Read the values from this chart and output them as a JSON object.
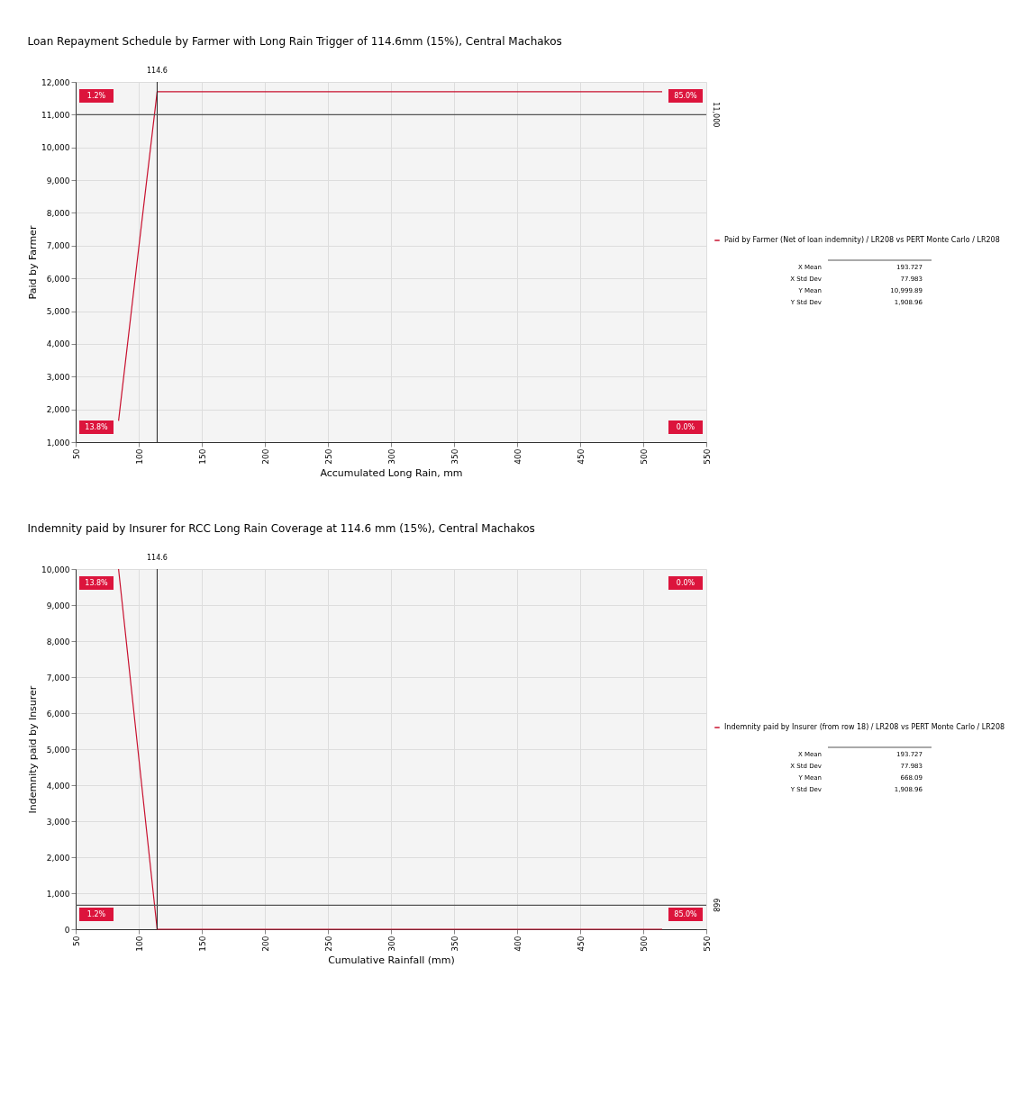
{
  "chart_data": [
    {
      "type": "line",
      "title": "Loan Repayment Schedule by Farmer with Long Rain Trigger of 114.6mm (15%), Central Machakos",
      "xlabel": "Accumulated Long Rain, mm",
      "ylabel": "Paid by Farmer",
      "series": [
        {
          "name": "Paid by Farmer (Net of loan indemnity) / LR208 vs PERT Monte Carlo / LR208",
          "color": "#c8102e",
          "x": [
            84,
            99.3,
            114.6,
            515
          ],
          "values": [
            1650,
            6700,
            11700,
            11700
          ]
        }
      ],
      "xlim": [
        50,
        550
      ],
      "xticks": [
        50,
        100,
        150,
        200,
        250,
        300,
        350,
        400,
        450,
        500,
        550
      ],
      "ylim": [
        1000,
        12000
      ],
      "yticks": [
        {
          "value": 1000,
          "label": "1,000"
        },
        {
          "value": 2000,
          "label": "2,000"
        },
        {
          "value": 3000,
          "label": "3,000"
        },
        {
          "value": 4000,
          "label": "4,000"
        },
        {
          "value": 5000,
          "label": "5,000"
        },
        {
          "value": 6000,
          "label": "6,000"
        },
        {
          "value": 7000,
          "label": "7,000"
        },
        {
          "value": 8000,
          "label": "8,000"
        },
        {
          "value": 9000,
          "label": "9,000"
        },
        {
          "value": 10000,
          "label": "10,000"
        },
        {
          "value": 11000,
          "label": "11,000"
        },
        {
          "value": 12000,
          "label": "12,000"
        }
      ],
      "ref_lines": [
        {
          "axis": "x",
          "value": 114.6,
          "label": "114.6",
          "color": "#222222"
        },
        {
          "axis": "y",
          "value": 11000,
          "label": "11,000",
          "color": "#555555"
        }
      ],
      "annotations": [
        "1.2%",
        "85.0%",
        "13.8%",
        "0.0%",
        "X Mean",
        "193.727",
        "X Std Dev",
        "77.983",
        "Y Mean",
        "10,999.89",
        "Y Std Dev",
        "1,908.96"
      ],
      "grid": true,
      "legend": "right",
      "marker": "none",
      "line_style": "solid"
    },
    {
      "type": "line",
      "title": "Indemnity paid by Insurer for RCC Long Rain Coverage at 114.6 mm (15%), Central Machakos",
      "xlabel": "Cumulative Rainfall (mm)",
      "ylabel": "Indemnity paid by Insurer",
      "series": [
        {
          "name": "Indemnity paid by Insurer (from row 18) / LR208 vs PERT Monte Carlo / LR208",
          "color": "#c8102e",
          "x": [
            84,
            99.3,
            114.6,
            515
          ],
          "values": [
            10000,
            5000,
            0,
            0
          ]
        }
      ],
      "xlim": [
        50,
        550
      ],
      "xticks": [
        50,
        100,
        150,
        200,
        250,
        300,
        350,
        400,
        450,
        500,
        550
      ],
      "ylim": [
        0,
        10000
      ],
      "yticks": [
        0,
        {
          "value": 1000,
          "label": "1,000"
        },
        {
          "value": 2000,
          "label": "2,000"
        },
        {
          "value": 3000,
          "label": "3,000"
        },
        {
          "value": 4000,
          "label": "4,000"
        },
        {
          "value": 5000,
          "label": "5,000"
        },
        {
          "value": 6000,
          "label": "6,000"
        },
        {
          "value": 7000,
          "label": "7,000"
        },
        {
          "value": 8000,
          "label": "8,000"
        },
        {
          "value": 9000,
          "label": "9,000"
        },
        {
          "value": 10000,
          "label": "10,000"
        }
      ],
      "ref_lines": [
        {
          "axis": "x",
          "value": 114.6,
          "label": "114.6",
          "color": "#222222"
        },
        {
          "axis": "y",
          "value": 668,
          "label": "668",
          "color": "#555555"
        }
      ],
      "annotations": [
        "13.8%",
        "0.0%",
        "1.2%",
        "85.0%",
        "X Mean",
        "193.727",
        "X Std Dev",
        "77.983",
        "Y Mean",
        "668.09",
        "Y Std Dev",
        "1,908.96"
      ],
      "grid": true,
      "legend": "right",
      "marker": "none",
      "line_style": "solid"
    }
  ]
}
